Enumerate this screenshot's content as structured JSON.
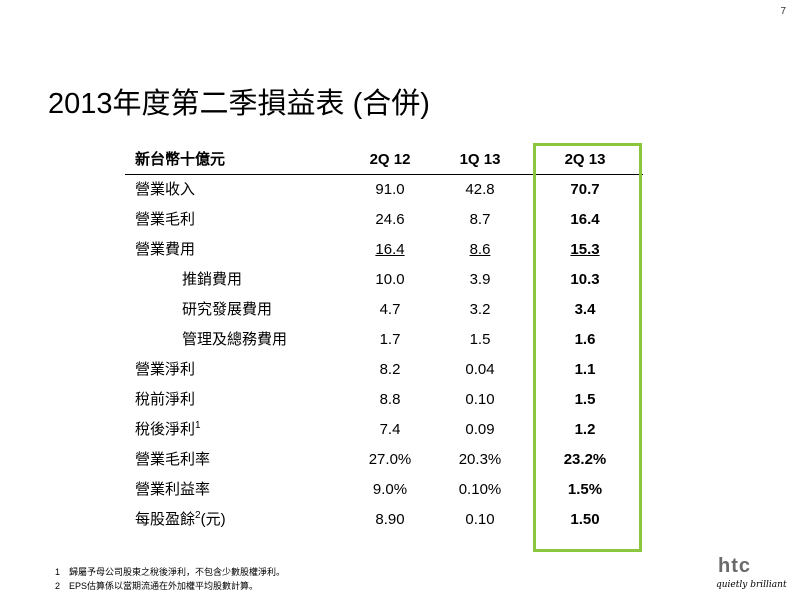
{
  "page_number": "7",
  "title": "2013年度第二季損益表 (合併)",
  "table": {
    "headers": [
      "新台幣十億元",
      "2Q 12",
      "1Q 13",
      "2Q 13"
    ],
    "rows": [
      {
        "label": "營業收入",
        "sup": "",
        "values": [
          "91.0",
          "42.8",
          "70.7"
        ]
      },
      {
        "label": "營業毛利",
        "sup": "",
        "values": [
          "24.6",
          "8.7",
          "16.4"
        ]
      },
      {
        "label": "營業費用",
        "sup": "",
        "values": [
          "16.4",
          "8.6",
          "15.3"
        ]
      },
      {
        "label": "推銷費用",
        "sup": "",
        "values": [
          "10.0",
          "3.9",
          "10.3"
        ]
      },
      {
        "label": "研究發展費用",
        "sup": "",
        "values": [
          "4.7",
          "3.2",
          "3.4"
        ]
      },
      {
        "label": "管理及總務費用",
        "sup": "",
        "values": [
          "1.7",
          "1.5",
          "1.6"
        ]
      },
      {
        "label": "營業淨利",
        "sup": "",
        "values": [
          "8.2",
          "0.04",
          "1.1"
        ]
      },
      {
        "label": "稅前淨利",
        "sup": "",
        "values": [
          "8.8",
          "0.10",
          "1.5"
        ]
      },
      {
        "label": "稅後淨利",
        "sup": "1",
        "values": [
          "7.4",
          "0.09",
          "1.2"
        ]
      },
      {
        "label": "營業毛利率",
        "sup": "",
        "values": [
          "27.0%",
          "20.3%",
          "23.2%"
        ]
      },
      {
        "label": "營業利益率",
        "sup": "",
        "values": [
          "9.0%",
          "0.10%",
          "1.5%"
        ]
      },
      {
        "label": "每股盈餘",
        "sup": "2",
        "suffix": "(元)",
        "values": [
          "8.90",
          "0.10",
          "1.50"
        ]
      }
    ]
  },
  "footnotes": [
    {
      "num": "1",
      "text": "歸屬予母公司股東之稅後淨利，不包含少數股權淨利。"
    },
    {
      "num": "2",
      "text": "EPS估算係以當期流通在外加權平均股數計算。"
    }
  ],
  "logo": {
    "brand": "htc",
    "tagline": "quietly brilliant"
  },
  "colors": {
    "highlight": "#8cc63f"
  }
}
